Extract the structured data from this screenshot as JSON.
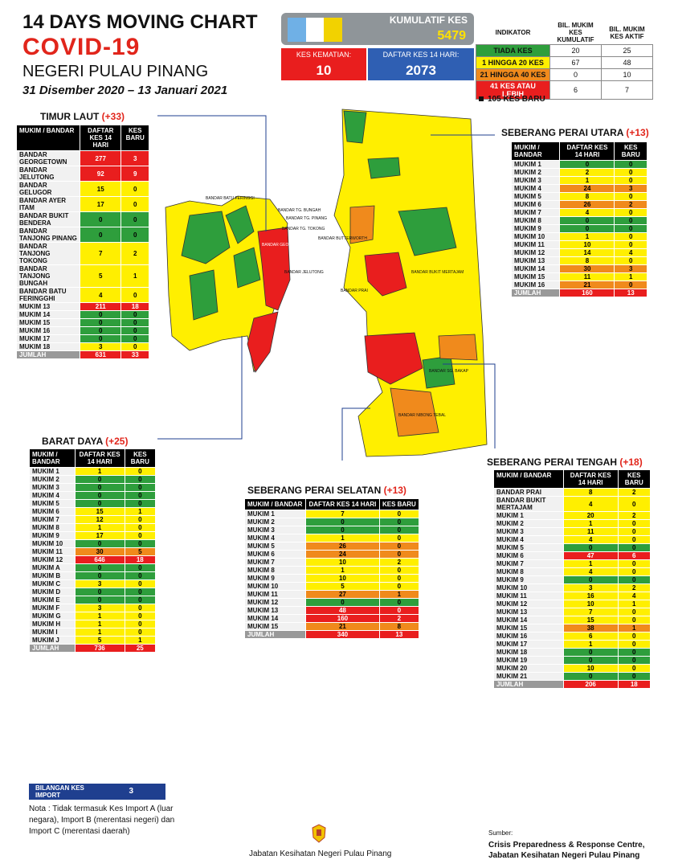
{
  "header": {
    "line1": "14  DAYS MOVING CHART",
    "line2": "COVID-19",
    "line3": "NEGERI PULAU PINANG",
    "line4": "31 Disember 2020 – 13 Januari 2021"
  },
  "summary": {
    "kumulatif_label": "KUMULATIF KES",
    "kumulatif_value": "5479",
    "kematian_label": "KES KEMATIAN:",
    "kematian_value": "10",
    "daftar_label": "DAFTAR KES 14 HARI:",
    "daftar_value": "2073"
  },
  "indicator": {
    "headers": [
      "INDIKATOR",
      "BIL. MUKIM KES KUMULATIF",
      "BIL. MUKIM KES AKTIF"
    ],
    "rows": [
      {
        "label": "TIADA KES",
        "c": "20",
        "a": "25",
        "color": "#2e9e3c"
      },
      {
        "label": "1 HINGGA 20 KES",
        "c": "67",
        "a": "48",
        "color": "#ffef00"
      },
      {
        "label": "21 HINGGA 40 KES",
        "c": "0",
        "a": "10",
        "color": "#f08a1c"
      },
      {
        "label": "41 KES ATAU LEBIH",
        "c": "6",
        "a": "7",
        "color": "#e91e1e"
      }
    ]
  },
  "kes_baru": "105 KES BARU",
  "districts": {
    "tl": {
      "name": "TIMUR LAUT ",
      "count": "(+33)",
      "h1": "MUKIM / BANDAR",
      "h2": "DAFTAR KES 14 HARI",
      "h3": "KES BARU",
      "rows": [
        [
          "BANDAR GEORGETOWN",
          "277",
          "3",
          "r",
          "r"
        ],
        [
          "BANDAR JELUTONG",
          "92",
          "9",
          "r",
          "r"
        ],
        [
          "BANDAR GELUGOR",
          "15",
          "0",
          "y",
          "y"
        ],
        [
          "BANDAR AYER ITAM",
          "17",
          "0",
          "y",
          "y"
        ],
        [
          "BANDAR BUKIT BENDERA",
          "0",
          "0",
          "g",
          "g"
        ],
        [
          "BANDAR TANJONG PINANG",
          "0",
          "0",
          "g",
          "g"
        ],
        [
          "BANDAR TANJONG TOKONG",
          "7",
          "2",
          "y",
          "y"
        ],
        [
          "BANDAR TANJONG BUNGAH",
          "5",
          "1",
          "y",
          "y"
        ],
        [
          "BANDAR BATU FERINGGHI",
          "4",
          "0",
          "y",
          "y"
        ],
        [
          "MUKIM 13",
          "211",
          "18",
          "r",
          "r"
        ],
        [
          "MUKIM 14",
          "0",
          "0",
          "g",
          "g"
        ],
        [
          "MUKIM 15",
          "0",
          "0",
          "g",
          "g"
        ],
        [
          "MUKIM 16",
          "0",
          "0",
          "g",
          "g"
        ],
        [
          "MUKIM 17",
          "0",
          "0",
          "g",
          "g"
        ],
        [
          "MUKIM 18",
          "3",
          "0",
          "y",
          "y"
        ]
      ],
      "total": [
        "JUMLAH",
        "631",
        "33"
      ]
    },
    "spu": {
      "name": "SEBERANG PERAI UTARA ",
      "count": "(+13)",
      "h1": "MUKIM / BANDAR",
      "h2": "DAFTAR KES 14 HARI",
      "h3": "KES BARU",
      "rows": [
        [
          "MUKIM 1",
          "0",
          "0",
          "g",
          "g"
        ],
        [
          "MUKIM 2",
          "2",
          "0",
          "y",
          "y"
        ],
        [
          "MUKIM 3",
          "1",
          "0",
          "y",
          "y"
        ],
        [
          "MUKIM 4",
          "24",
          "3",
          "o",
          "o"
        ],
        [
          "MUKIM 5",
          "8",
          "0",
          "y",
          "y"
        ],
        [
          "MUKIM 6",
          "26",
          "2",
          "o",
          "o"
        ],
        [
          "MUKIM 7",
          "4",
          "0",
          "y",
          "y"
        ],
        [
          "MUKIM 8",
          "0",
          "0",
          "g",
          "g"
        ],
        [
          "MUKIM 9",
          "0",
          "0",
          "g",
          "g"
        ],
        [
          "MUKIM 10",
          "1",
          "0",
          "y",
          "y"
        ],
        [
          "MUKIM 11",
          "10",
          "0",
          "y",
          "y"
        ],
        [
          "MUKIM 12",
          "14",
          "4",
          "y",
          "y"
        ],
        [
          "MUKIM 13",
          "8",
          "0",
          "y",
          "y"
        ],
        [
          "MUKIM 14",
          "30",
          "3",
          "o",
          "o"
        ],
        [
          "MUKIM 15",
          "11",
          "1",
          "y",
          "y"
        ],
        [
          "MUKIM 16",
          "21",
          "0",
          "o",
          "o"
        ]
      ],
      "total": [
        "JUMLAH",
        "160",
        "13"
      ]
    },
    "bd": {
      "name": "BARAT DAYA ",
      "count": "(+25)",
      "h1": "MUKIM / BANDAR",
      "h2": "DAFTAR KES 14 HARI",
      "h3": "KES BARU",
      "rows": [
        [
          "MUKIM 1",
          "1",
          "0",
          "y",
          "y"
        ],
        [
          "MUKIM 2",
          "0",
          "0",
          "g",
          "g"
        ],
        [
          "MUKIM 3",
          "0",
          "0",
          "g",
          "g"
        ],
        [
          "MUKIM 4",
          "0",
          "0",
          "g",
          "g"
        ],
        [
          "MUKIM 5",
          "0",
          "0",
          "g",
          "g"
        ],
        [
          "MUKIM 6",
          "15",
          "1",
          "y",
          "y"
        ],
        [
          "MUKIM 7",
          "12",
          "0",
          "y",
          "y"
        ],
        [
          "MUKIM 8",
          "1",
          "0",
          "y",
          "y"
        ],
        [
          "MUKIM 9",
          "17",
          "0",
          "y",
          "y"
        ],
        [
          "MUKIM 10",
          "0",
          "0",
          "g",
          "g"
        ],
        [
          "MUKIM 11",
          "30",
          "5",
          "o",
          "o"
        ],
        [
          "MUKIM 12",
          "646",
          "18",
          "r",
          "r"
        ],
        [
          "MUKIM A",
          "0",
          "0",
          "g",
          "g"
        ],
        [
          "MUKIM B",
          "0",
          "0",
          "g",
          "g"
        ],
        [
          "MUKIM C",
          "3",
          "0",
          "y",
          "y"
        ],
        [
          "MUKIM D",
          "0",
          "0",
          "g",
          "g"
        ],
        [
          "MUKIM E",
          "0",
          "0",
          "g",
          "g"
        ],
        [
          "MUKIM F",
          "3",
          "0",
          "y",
          "y"
        ],
        [
          "MUKIM G",
          "1",
          "0",
          "y",
          "y"
        ],
        [
          "MUKIM H",
          "1",
          "0",
          "y",
          "y"
        ],
        [
          "MUKIM I",
          "1",
          "0",
          "y",
          "y"
        ],
        [
          "MUKIM J",
          "5",
          "1",
          "y",
          "y"
        ]
      ],
      "total": [
        "JUMLAH",
        "736",
        "25"
      ]
    },
    "sps": {
      "name": "SEBERANG PERAI SELATAN ",
      "count": "(+13)",
      "h1": "MUKIM / BANDAR",
      "h2": "DAFTAR KES 14 HARI",
      "h3": "KES BARU",
      "rows": [
        [
          "MUKIM 1",
          "7",
          "0",
          "y",
          "y"
        ],
        [
          "MUKIM 2",
          "0",
          "0",
          "g",
          "g"
        ],
        [
          "MUKIM 3",
          "0",
          "0",
          "g",
          "g"
        ],
        [
          "MUKIM 4",
          "1",
          "0",
          "y",
          "y"
        ],
        [
          "MUKIM 5",
          "26",
          "0",
          "o",
          "o"
        ],
        [
          "MUKIM 6",
          "24",
          "0",
          "o",
          "o"
        ],
        [
          "MUKIM 7",
          "10",
          "2",
          "y",
          "y"
        ],
        [
          "MUKIM 8",
          "1",
          "0",
          "y",
          "y"
        ],
        [
          "MUKIM 9",
          "10",
          "0",
          "y",
          "y"
        ],
        [
          "MUKIM 10",
          "5",
          "0",
          "y",
          "y"
        ],
        [
          "MUKIM 11",
          "27",
          "1",
          "o",
          "o"
        ],
        [
          "MUKIM 12",
          "0",
          "0",
          "g",
          "g"
        ],
        [
          "MUKIM 13",
          "48",
          "0",
          "r",
          "r"
        ],
        [
          "MUKIM 14",
          "160",
          "2",
          "r",
          "r"
        ],
        [
          "MUKIM 15",
          "21",
          "8",
          "o",
          "o"
        ]
      ],
      "total": [
        "JUMLAH",
        "340",
        "13"
      ]
    },
    "spt": {
      "name": "SEBERANG PERAI TENGAH ",
      "count": "(+18)",
      "h1": "MUKIM / BANDAR",
      "h2": "DAFTAR KES 14 HARI",
      "h3": "KES BARU",
      "rows": [
        [
          "BANDAR PRAI",
          "8",
          "2",
          "y",
          "y"
        ],
        [
          "BANDAR BUKIT MERTAJAM",
          "4",
          "0",
          "y",
          "y"
        ],
        [
          "MUKIM 1",
          "20",
          "2",
          "y",
          "y"
        ],
        [
          "MUKIM 2",
          "1",
          "0",
          "y",
          "y"
        ],
        [
          "MUKIM 3",
          "11",
          "0",
          "y",
          "y"
        ],
        [
          "MUKIM 4",
          "4",
          "0",
          "y",
          "y"
        ],
        [
          "MUKIM 5",
          "0",
          "0",
          "g",
          "g"
        ],
        [
          "MUKIM 6",
          "47",
          "6",
          "r",
          "r"
        ],
        [
          "MUKIM 7",
          "1",
          "0",
          "y",
          "y"
        ],
        [
          "MUKIM 8",
          "4",
          "0",
          "y",
          "y"
        ],
        [
          "MUKIM 9",
          "0",
          "0",
          "g",
          "g"
        ],
        [
          "MUKIM 10",
          "3",
          "2",
          "y",
          "y"
        ],
        [
          "MUKIM 11",
          "16",
          "4",
          "y",
          "y"
        ],
        [
          "MUKIM 12",
          "10",
          "1",
          "y",
          "y"
        ],
        [
          "MUKIM 13",
          "7",
          "0",
          "y",
          "y"
        ],
        [
          "MUKIM 14",
          "15",
          "0",
          "y",
          "y"
        ],
        [
          "MUKIM 15",
          "38",
          "1",
          "o",
          "o"
        ],
        [
          "MUKIM 16",
          "6",
          "0",
          "y",
          "y"
        ],
        [
          "MUKIM 17",
          "1",
          "0",
          "y",
          "y"
        ],
        [
          "MUKIM 18",
          "0",
          "0",
          "g",
          "g"
        ],
        [
          "MUKIM 19",
          "0",
          "0",
          "g",
          "g"
        ],
        [
          "MUKIM 20",
          "10",
          "0",
          "y",
          "y"
        ],
        [
          "MUKIM 21",
          "0",
          "0",
          "g",
          "g"
        ]
      ],
      "total": [
        "JUMLAH",
        "206",
        "18"
      ]
    }
  },
  "map_labels": [
    "BANDAR BATU FERINGGI",
    "BANDAR TG. BUNGAH",
    "BANDAR TG. PINANG",
    "BANDAR TG. TOKONG",
    "BANDAR GEORGETOWN",
    "BANDAR JELUTONG",
    "BANDAR BUTTERWORTH",
    "BANDAR PRAI",
    "BANDAR BUKIT MERTAJAM",
    "BANDAR SG. BAKAP",
    "BANDAR NIBONG TEBAL"
  ],
  "bilangan": {
    "label": "BILANGAN KES IMPORT",
    "value": "3"
  },
  "nota": "Nota : Tidak termasuk Kes Import A (luar negara), Import B (merentasi negeri) dan Import C (merentasi daerah)",
  "footer": {
    "jabatan": "Jabatan Kesihatan Negeri Pulau Pinang",
    "sumber": "Sumber:",
    "source1": "Crisis Preparedness & Response Centre,",
    "source2": "Jabatan Kesihatan Negeri Pulau Pinang"
  },
  "colors": {
    "green": "#2e9e3c",
    "yellow": "#ffef00",
    "orange": "#f08a1c",
    "red": "#e91e1e",
    "blue": "#2f5fb3"
  }
}
